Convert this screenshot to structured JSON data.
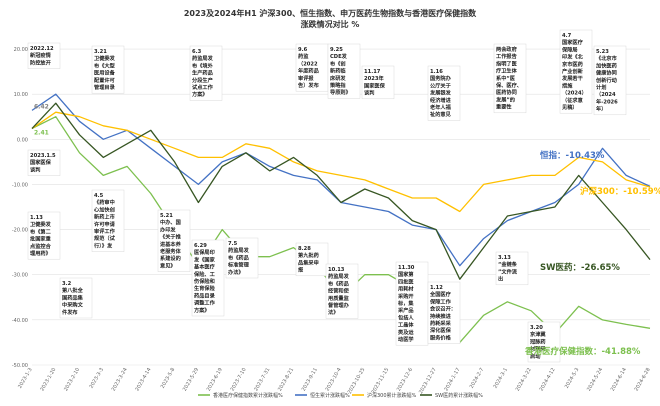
{
  "chart_data": {
    "type": "line",
    "title_line1": "2023及2024年H1 沪深300、恒生指数、申万医药生物指数与香港医疗保健指数",
    "title_line2": "涨跌情况对比 %",
    "ylim": [
      -50,
      22
    ],
    "yticks": [
      "20.00",
      "10.00",
      "0.00",
      "-10.00",
      "-20.00",
      "-30.00",
      "-40.00",
      "-50.00"
    ],
    "ytick_values": [
      20,
      10,
      0,
      -10,
      -20,
      -30,
      -40,
      -50
    ],
    "grid": "horizontal",
    "legend_position": "bottom",
    "x": [
      "2023-1-3",
      "2023-1-20",
      "2023-2-10",
      "2023-3-3",
      "2023-3-24",
      "2023-4-14",
      "2023-5-8",
      "2023-5-29",
      "2023-6-19",
      "2023-7-10",
      "2023-7-31",
      "2023-8-21",
      "2023-9-11",
      "2023-10-4",
      "2023-10-25",
      "2023-11-15",
      "2023-12-6",
      "2023-12-27",
      "2024-1-17",
      "2024-2-7",
      "2024-3-1",
      "2024-3-22",
      "2024-4-12",
      "2024-5-3",
      "2024-5-24",
      "2024-6-14",
      "2024-6-28"
    ],
    "series": [
      {
        "name": "香港医疗保健指数累计涨跌幅%",
        "color": "#7dc04f",
        "end_label": "香港医疗保健指数：-41.88%",
        "values": [
          2.4,
          5,
          -3,
          -8,
          -6,
          -12,
          -20,
          -28,
          -20,
          -26,
          -26,
          -24,
          -28,
          -35,
          -30,
          -30,
          -33,
          -38,
          -45,
          -39,
          -36,
          -38,
          -43,
          -37,
          -40,
          -41,
          -41.88
        ]
      },
      {
        "name": "恒生累计涨跌幅%",
        "color": "#4472c4",
        "end_label": "恒指：-10.43%",
        "values": [
          6.4,
          10,
          4,
          0,
          2,
          -2,
          -6,
          -10,
          -5,
          -3,
          -6,
          -8,
          -9,
          -14,
          -15,
          -16,
          -19,
          -20,
          -28,
          -22,
          -18,
          -16,
          -14,
          -10,
          -2,
          -8,
          -10.43
        ]
      },
      {
        "name": "沪深300累计涨跌幅%",
        "color": "#ffc000",
        "end_label": "沪深300：-10.59%",
        "values": [
          2.4,
          6,
          5,
          3,
          2,
          0,
          -2,
          -4,
          -4,
          -1,
          -2,
          -5,
          -7,
          -8,
          -9,
          -11,
          -13,
          -13,
          -16,
          -10,
          -9,
          -8,
          -8,
          -4,
          -5,
          -9,
          -10.59
        ]
      },
      {
        "name": "SW医药累计涨跌幅%",
        "color": "#375623",
        "end_label": "SW医药：-26.65%",
        "values": [
          2.4,
          8,
          1,
          -4,
          -1,
          2,
          -5,
          -14,
          -6,
          -3,
          -7,
          -4,
          -8,
          -14,
          -11,
          -13,
          -18,
          -20,
          -31,
          -24,
          -17,
          -16,
          -15,
          -8,
          -14,
          -20,
          -26.65
        ]
      }
    ],
    "annotations": [
      {
        "id": "a1",
        "lines": [
          "2022.12",
          "新冠疫情",
          "防控放开"
        ]
      },
      {
        "id": "a2",
        "lines": [
          "2023.1.5",
          "国家医保",
          "谈判"
        ]
      },
      {
        "id": "a3",
        "lines": [
          "1.13",
          "卫健委发",
          "布《第二",
          "批国家重",
          "点监控合",
          "理用药》"
        ]
      },
      {
        "id": "a4",
        "lines": [
          "3.2",
          "第八批全",
          "国药品集",
          "中采购文",
          "件发布"
        ]
      },
      {
        "id": "a5",
        "lines": [
          "3.21",
          "卫健委发",
          "布《大型",
          "医用设备",
          "配置许可",
          "管理目录"
        ]
      },
      {
        "id": "a6",
        "lines": [
          "4.5",
          "《药审中",
          "心加快创",
          "新药上市",
          "许可申请",
          "审评工作",
          "规范（试",
          "行）》发"
        ]
      },
      {
        "id": "a7",
        "lines": [
          "6.3",
          "药监局发",
          "布《境外",
          "生产药品",
          "分段生产",
          "试点工作",
          "方案》"
        ]
      },
      {
        "id": "a8",
        "lines": [
          "5.21",
          "中办、国",
          "办印发",
          "《关于推",
          "进基本养",
          "老服务体",
          "系建设的",
          "意见》"
        ]
      },
      {
        "id": "a9",
        "lines": [
          "6.29",
          "医保局印",
          "发《国家",
          "基本医疗",
          "保险、工",
          "伤保险和",
          "生育保险",
          "药品目录",
          "调整工作",
          "方案》"
        ]
      },
      {
        "id": "a10",
        "lines": [
          "7.5",
          "药监局发",
          "布《药品",
          "标准管理",
          "办法》"
        ]
      },
      {
        "id": "a11",
        "lines": [
          "9.6",
          "药监",
          "（2022",
          "年度药品",
          "审评报",
          "告）发布"
        ]
      },
      {
        "id": "a12",
        "lines": [
          "8.28",
          "第九批药",
          "品集采申",
          "报"
        ]
      },
      {
        "id": "a13",
        "lines": [
          "9.25",
          "CDE发",
          "布《创",
          "新药临",
          "床研发",
          "策略指",
          "导原则》"
        ]
      },
      {
        "id": "a14",
        "lines": [
          "10.13",
          "药监局发",
          "布《药品",
          "经营和使",
          "用质量监",
          "督管理办",
          "法》"
        ]
      },
      {
        "id": "a15",
        "lines": [
          "11.17",
          "2023年",
          "国家医保",
          "谈判"
        ]
      },
      {
        "id": "a16",
        "lines": [
          "11.30",
          "国家第",
          "四批医",
          "用耗材",
          "采购开",
          "标，集",
          "采产品",
          "包括人",
          "工晶体",
          "类及运",
          "动医学"
        ]
      },
      {
        "id": "a17",
        "lines": [
          "1.16",
          "国务院办",
          "公厅关于",
          "发展银发",
          "经济增进",
          "老年人福",
          "祉的意见"
        ]
      },
      {
        "id": "a18",
        "lines": [
          "1.12",
          "全国医疗",
          "保障工作",
          "会议召开：",
          "持续推进",
          "药耗采采",
          "深化医保",
          "服务价格"
        ]
      },
      {
        "id": "a19",
        "lines": [
          "两会政府",
          "工作报告",
          "指明了医",
          "疗卫生体",
          "系中“医",
          "保、医疗、",
          "医药协同",
          "发展”的",
          "重要性"
        ]
      },
      {
        "id": "a20",
        "lines": [
          "4.7",
          "国家医疗",
          "保障局",
          "印发《北",
          "京市医药",
          "产业创新",
          "发展若干",
          "措施",
          "（2024）",
          "（征求意",
          "见稿）"
        ]
      },
      {
        "id": "a21",
        "lines": [
          "3.13",
          "“金链条",
          "”文件流",
          "出"
        ]
      },
      {
        "id": "a22",
        "lines": [
          "3.20",
          "京津冀",
          "冠脉药",
          "材联采",
          "启动"
        ]
      },
      {
        "id": "a23",
        "lines": [
          "5.23",
          "《北京市",
          "加快医药",
          "健康协同",
          "创新行动",
          "计划",
          "（2024",
          "年-2026",
          "年）"
        ]
      }
    ]
  }
}
